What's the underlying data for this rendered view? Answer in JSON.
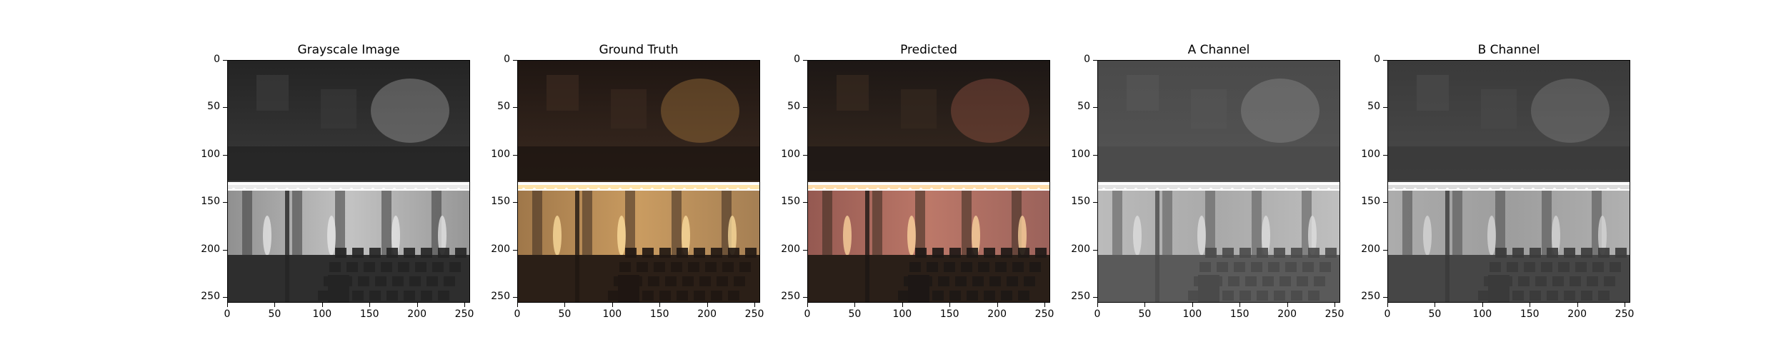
{
  "panels": [
    {
      "title": "Grayscale Image",
      "variant": "gray"
    },
    {
      "title": "Ground Truth",
      "variant": "truth"
    },
    {
      "title": "Predicted",
      "variant": "pred"
    },
    {
      "title": "A Channel",
      "variant": "achan"
    },
    {
      "title": "B Channel",
      "variant": "bchan"
    }
  ],
  "yticks": [
    "0",
    "50",
    "100",
    "150",
    "200",
    "250"
  ],
  "xticks": [
    "0",
    "50",
    "100",
    "150",
    "200",
    "250"
  ],
  "pixel_extent": 256
}
